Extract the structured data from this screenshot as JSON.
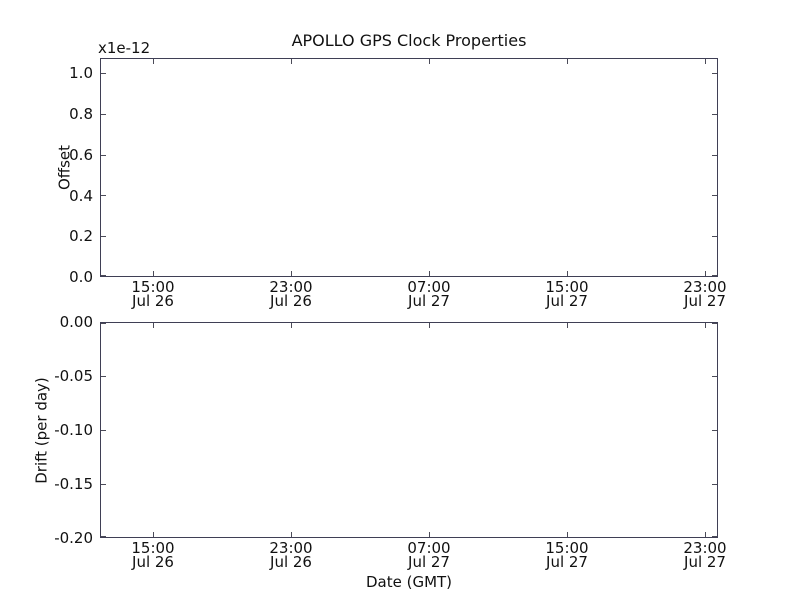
{
  "title": "APOLLO GPS Clock Properties",
  "top_plot": {
    "offset_text": "x1e-12",
    "ylabel": "Offset",
    "yticks": [
      "1.0",
      "0.8",
      "0.6",
      "0.4",
      "0.2",
      "0.0"
    ],
    "xticks": [
      {
        "time": "15:00",
        "date": "Jul 26"
      },
      {
        "time": "23:00",
        "date": "Jul 26"
      },
      {
        "time": "07:00",
        "date": "Jul 27"
      },
      {
        "time": "15:00",
        "date": "Jul 27"
      },
      {
        "time": "23:00",
        "date": "Jul 27"
      }
    ]
  },
  "bottom_plot": {
    "ylabel": "Drift (per day)",
    "xlabel": "Date (GMT)",
    "yticks": [
      "0.00",
      "-0.05",
      "-0.10",
      "-0.15",
      "-0.20"
    ],
    "xticks": [
      {
        "time": "15:00",
        "date": "Jul 26"
      },
      {
        "time": "23:00",
        "date": "Jul 26"
      },
      {
        "time": "07:00",
        "date": "Jul 27"
      },
      {
        "time": "15:00",
        "date": "Jul 27"
      },
      {
        "time": "23:00",
        "date": "Jul 27"
      }
    ]
  },
  "colors": {
    "background": "#ffffff",
    "spine": "#3f3f55",
    "tick": "#4b4b58",
    "text": "#111111"
  },
  "chart_data": [
    {
      "type": "line",
      "title": "APOLLO GPS Clock Properties",
      "ylabel": "Offset",
      "y_scale_multiplier": "x1e-12",
      "ylim": [
        0.0,
        1.06
      ],
      "yticks": [
        0.0,
        0.2,
        0.4,
        0.6,
        0.8,
        1.0
      ],
      "xtick_labels": [
        "15:00 Jul 26",
        "23:00 Jul 26",
        "07:00 Jul 27",
        "15:00 Jul 27",
        "23:00 Jul 27"
      ],
      "series": [],
      "grid": false,
      "legend": false,
      "note": "axes empty - no data plotted"
    },
    {
      "type": "line",
      "ylabel": "Drift (per day)",
      "xlabel": "Date (GMT)",
      "ylim": [
        -0.2,
        0.0
      ],
      "yticks": [
        0.0,
        -0.05,
        -0.1,
        -0.15,
        -0.2
      ],
      "xtick_labels": [
        "15:00 Jul 26",
        "23:00 Jul 26",
        "07:00 Jul 27",
        "15:00 Jul 27",
        "23:00 Jul 27"
      ],
      "series": [],
      "grid": false,
      "legend": false,
      "note": "axes empty - no data plotted"
    }
  ]
}
